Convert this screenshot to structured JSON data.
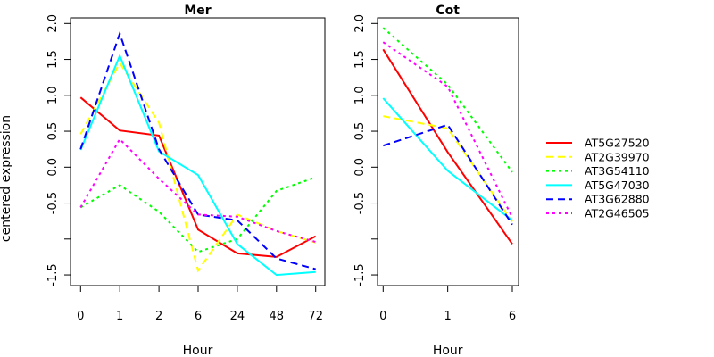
{
  "chart_data": {
    "type": "line",
    "ylabel": "centered expression",
    "legend_position": "right",
    "series_styles": [
      {
        "name": "AT5G27520",
        "color": "#ff0000",
        "dash": "solid"
      },
      {
        "name": "AT2G39970",
        "color": "#ffff00",
        "dash": "dashed"
      },
      {
        "name": "AT3G54110",
        "color": "#00ff00",
        "dash": "dotted"
      },
      {
        "name": "AT5G47030",
        "color": "#00ffff",
        "dash": "solid"
      },
      {
        "name": "AT3G62880",
        "color": "#0000ff",
        "dash": "dashed"
      },
      {
        "name": "AT2G46505",
        "color": "#ff00ff",
        "dash": "dotted"
      }
    ],
    "panels": [
      {
        "title": "Mer",
        "xlabel": "Hour",
        "categories": [
          "0",
          "1",
          "2",
          "6",
          "24",
          "48",
          "72"
        ],
        "ylim": [
          -1.6,
          2.1
        ],
        "yticks": [
          -1.5,
          -1.0,
          -0.5,
          0.0,
          0.5,
          1.0,
          1.5,
          2.0
        ],
        "ytick_labels": [
          "-1.5",
          "",
          "-0.5",
          "0.0",
          "0.5",
          "1.0",
          "1.5",
          "2.0"
        ],
        "series": [
          {
            "name": "AT5G27520",
            "values": [
              0.97,
              0.51,
              0.44,
              -0.87,
              -1.2,
              -1.25,
              -0.96
            ]
          },
          {
            "name": "AT2G39970",
            "values": [
              0.46,
              1.45,
              0.62,
              -1.44,
              -0.66,
              -0.89,
              -1.05
            ]
          },
          {
            "name": "AT3G54110",
            "values": [
              -0.56,
              -0.25,
              -0.62,
              -1.18,
              -1.0,
              -0.33,
              -0.14
            ]
          },
          {
            "name": "AT5G47030",
            "values": [
              0.24,
              1.55,
              0.22,
              -0.11,
              -1.07,
              -1.5,
              -1.46
            ]
          },
          {
            "name": "AT3G62880",
            "values": [
              0.25,
              1.86,
              0.25,
              -0.66,
              -0.74,
              -1.27,
              -1.42
            ]
          },
          {
            "name": "AT2G46505",
            "values": [
              -0.56,
              0.39,
              -0.16,
              -0.66,
              -0.69,
              -0.89,
              -1.04
            ]
          }
        ]
      },
      {
        "title": "Cot",
        "xlabel": "Hour",
        "categories": [
          "0",
          "1",
          "6"
        ],
        "ylim": [
          -1.6,
          2.1
        ],
        "yticks": [
          -1.5,
          -1.0,
          -0.5,
          0.0,
          0.5,
          1.0,
          1.5,
          2.0
        ],
        "ytick_labels": [
          "-1.5",
          "",
          "-0.5",
          "0.0",
          "0.5",
          "1.0",
          "1.5",
          "2.0"
        ],
        "series": [
          {
            "name": "AT5G27520",
            "values": [
              1.64,
              0.21,
              -1.07
            ]
          },
          {
            "name": "AT2G39970",
            "values": [
              0.71,
              0.54,
              -0.76
            ]
          },
          {
            "name": "AT3G54110",
            "values": [
              1.94,
              1.15,
              -0.07
            ]
          },
          {
            "name": "AT5G47030",
            "values": [
              0.96,
              -0.05,
              -0.74
            ]
          },
          {
            "name": "AT3G62880",
            "values": [
              0.3,
              0.59,
              -0.8
            ]
          },
          {
            "name": "AT2G46505",
            "values": [
              1.74,
              1.12,
              -0.7
            ]
          }
        ]
      }
    ]
  }
}
